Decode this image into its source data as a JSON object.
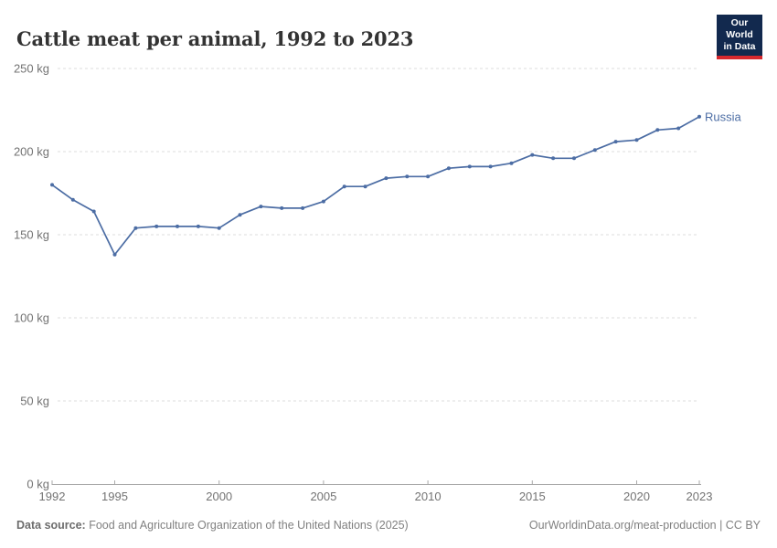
{
  "header": {
    "title": "Cattle meat per animal, 1992 to 2023",
    "logo": {
      "line1": "Our World",
      "line2": "in Data"
    }
  },
  "chart_data": {
    "type": "line",
    "title": "Cattle meat per animal, 1992 to 2023",
    "unit": "kg",
    "xlabel": "",
    "ylabel": "kg",
    "ylim": [
      0,
      250
    ],
    "yticks": [
      0,
      50,
      100,
      150,
      200,
      250
    ],
    "xticks": [
      1992,
      1995,
      2000,
      2005,
      2010,
      2015,
      2020,
      2023
    ],
    "grid": "horizontal-dashed",
    "legend_position": "end-of-line-label",
    "x": [
      1992,
      1993,
      1994,
      1995,
      1996,
      1997,
      1998,
      1999,
      2000,
      2001,
      2002,
      2003,
      2004,
      2005,
      2006,
      2007,
      2008,
      2009,
      2010,
      2011,
      2012,
      2013,
      2014,
      2015,
      2016,
      2017,
      2018,
      2019,
      2020,
      2021,
      2022,
      2023
    ],
    "series": [
      {
        "name": "Russia",
        "color": "#4C6DA4",
        "values": [
          180,
          171,
          164,
          138,
          154,
          155,
          155,
          155,
          154,
          162,
          167,
          166,
          166,
          170,
          179,
          179,
          184,
          185,
          185,
          190,
          191,
          191,
          193,
          198,
          196,
          196,
          201,
          206,
          207,
          213,
          214,
          221
        ]
      }
    ]
  },
  "colors": {
    "line": "#4C6DA4",
    "logo_bg": "#12294E",
    "logo_bar": "#D7282E",
    "axis": "#a8a8a8",
    "gridline": "#dcdcdc",
    "tick_text": "#737373",
    "title_text": "#333333"
  },
  "footer": {
    "source_label": "Data source:",
    "source_text": " Food and Agriculture Organization of the United Nations (2025)",
    "credit": "OurWorldinData.org/meat-production | CC BY"
  }
}
